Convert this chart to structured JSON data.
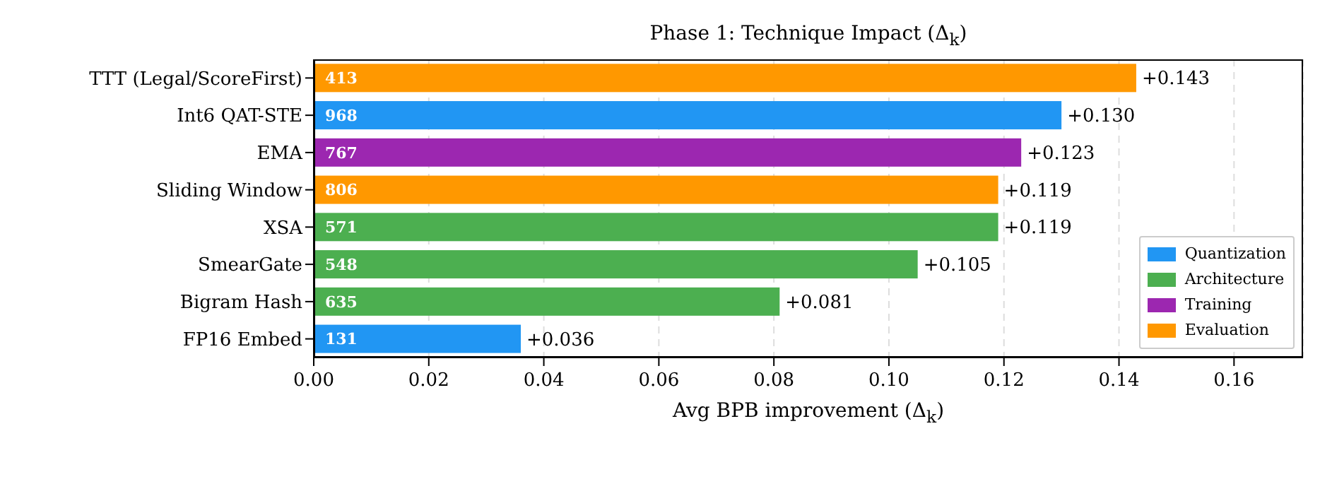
{
  "chart_data": {
    "type": "bar",
    "orientation": "horizontal",
    "stacked": true,
    "title": "Phase 1: Technique Impact (Δ$_{k}$)",
    "xlabel": "Avg BPB improvement (Δ$_{k}$)",
    "categories": [
      "TTT (Legal/ScoreFirst)",
      "Int6 QAT-STE",
      "EMA",
      "Sliding Window",
      "XSA",
      "SmearGate",
      "Bigram Hash",
      "FP16 Embed"
    ],
    "series": [
      {
        "name": "Quantization",
        "color": "#2196f3",
        "values": [
          null,
          0.13,
          null,
          null,
          null,
          null,
          null,
          0.036
        ],
        "value_labels": [
          null,
          "+0.130",
          null,
          null,
          null,
          null,
          null,
          "+0.036"
        ]
      },
      {
        "name": "Architecture",
        "color": "#4caf50",
        "values": [
          null,
          null,
          null,
          null,
          0.119,
          0.105,
          0.081,
          null
        ],
        "value_labels": [
          null,
          null,
          null,
          null,
          "+0.119",
          "+0.105",
          "+0.081",
          null
        ]
      },
      {
        "name": "Training",
        "color": "#9c27b0",
        "values": [
          null,
          null,
          0.123,
          null,
          null,
          null,
          null,
          null
        ],
        "value_labels": [
          null,
          null,
          "+0.123",
          null,
          null,
          null,
          null,
          null
        ]
      },
      {
        "name": "Evaluation",
        "color": "#ff9800",
        "values": [
          0.143,
          null,
          null,
          0.119,
          null,
          null,
          null,
          null
        ],
        "value_labels": [
          "+0.143",
          null,
          null,
          "+0.119",
          null,
          null,
          null,
          null
        ]
      }
    ],
    "annotations": [
      "413",
      "968",
      "767",
      "806",
      "571",
      "548",
      "635",
      "131"
    ],
    "xlim": [
      0,
      0.172
    ],
    "xticks": [
      {
        "value": 0,
        "label": "0.00"
      },
      {
        "value": 0.02,
        "label": "0.02"
      },
      {
        "value": 0.04,
        "label": "0.04"
      },
      {
        "value": 0.06,
        "label": "0.06"
      },
      {
        "value": 0.08,
        "label": "0.08"
      },
      {
        "value": 0.1,
        "label": "0.10"
      },
      {
        "value": 0.12,
        "label": "0.12"
      },
      {
        "value": 0.14,
        "label": "0.14"
      },
      {
        "value": 0.16,
        "label": "0.16"
      }
    ],
    "grid": "x",
    "legend": "bottom right"
  }
}
